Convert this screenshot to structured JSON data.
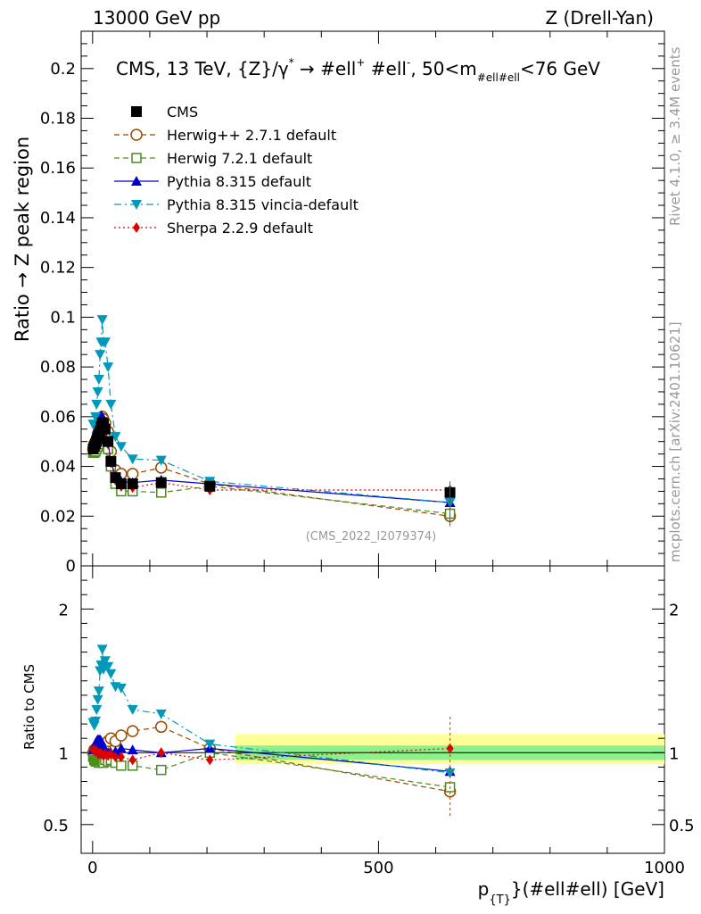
{
  "header": {
    "left": "13000 GeV pp",
    "right": "Z (Drell-Yan)"
  },
  "side_labels": {
    "rivet": "Rivet 4.1.0, ≥ 3.4M events",
    "mcplots": "mcplots.cern.ch [arXiv:2401.10621]"
  },
  "chart_data": {
    "type": "line",
    "title_parts": {
      "main": "CMS, 13 TeV, {Z}/γ",
      "star": "*",
      "arrow": " → ",
      "l1": " #ell",
      "l1sup": "+",
      "l2": " #ell",
      "l2sup": "-",
      "comma": ",  50<m",
      "msub": "#ell#ell",
      "tail": "<76 GeV"
    },
    "ylabel": "Ratio → Z peak region",
    "ratio_ylabel": "Ratio to CMS",
    "xlabel_parts": {
      "p": "p",
      "sub": "{T}",
      "rest": "}(#ell#ell) [GeV]"
    },
    "watermark": "(CMS_2022_I2079374)",
    "xlim": [
      -20,
      1000
    ],
    "ylim": [
      0,
      0.215
    ],
    "ratio_ylim": [
      0.3,
      2.3
    ],
    "xticks": [
      0,
      500,
      1000
    ],
    "yticks": [
      0,
      0.02,
      0.04,
      0.06,
      0.08,
      0.1,
      0.12,
      0.14,
      0.16,
      0.18,
      0.2
    ],
    "ytick_labels": [
      "0",
      "0.02",
      "0.04",
      "0.06",
      "0.08",
      "0.1",
      "0.12",
      "0.14",
      "0.16",
      "0.18",
      "0.2"
    ],
    "ratio_yticks": [
      0.5,
      1,
      2
    ],
    "ratio_ytick_labels": [
      "0.5",
      "1",
      "2"
    ],
    "x": [
      1,
      3,
      5,
      7,
      9,
      11,
      13,
      15,
      17,
      19,
      22,
      27,
      32,
      40,
      50,
      70,
      120,
      205,
      625
    ],
    "series": [
      {
        "name": "CMS",
        "color": "#000000",
        "marker": "square-filled",
        "line": "none",
        "values": [
          0.047,
          0.048,
          0.049,
          0.05,
          0.051,
          0.0525,
          0.054,
          0.056,
          0.0575,
          0.057,
          0.055,
          0.05,
          0.042,
          0.0355,
          0.033,
          0.033,
          0.0335,
          0.032,
          0.0295
        ]
      },
      {
        "name": "Herwig++ 2.7.1 default",
        "color": "#9a4a00",
        "marker": "circle-open",
        "line": "dashed",
        "values": [
          0.047,
          0.049,
          0.05,
          0.051,
          0.053,
          0.0545,
          0.056,
          0.058,
          0.06,
          0.059,
          0.0575,
          0.054,
          0.046,
          0.0385,
          0.037,
          0.037,
          0.0395,
          0.033,
          0.02
        ]
      },
      {
        "name": "Herwig 7.2.1 default",
        "color": "#4a8c1a",
        "marker": "square-open",
        "line": "dashed",
        "values": [
          0.0455,
          0.0455,
          0.046,
          0.047,
          0.048,
          0.049,
          0.051,
          0.053,
          0.054,
          0.053,
          0.052,
          0.047,
          0.04,
          0.033,
          0.03,
          0.03,
          0.0295,
          0.032,
          0.021
        ]
      },
      {
        "name": "Pythia 8.315 default",
        "color": "#0000cc",
        "marker": "triangle-up",
        "line": "solid",
        "values": [
          0.048,
          0.05,
          0.052,
          0.054,
          0.0555,
          0.057,
          0.059,
          0.0605,
          0.06,
          0.058,
          0.056,
          0.05,
          0.042,
          0.036,
          0.034,
          0.0335,
          0.0345,
          0.033,
          0.0255
        ]
      },
      {
        "name": "Pythia 8.315 vincia-default",
        "color": "#0099bb",
        "marker": "triangle-down",
        "line": "dashdot",
        "values": [
          0.057,
          0.057,
          0.06,
          0.065,
          0.07,
          0.075,
          0.085,
          0.09,
          0.099,
          0.09,
          0.09,
          0.08,
          0.065,
          0.052,
          0.048,
          0.043,
          0.0425,
          0.034,
          0.0255
        ]
      },
      {
        "name": "Sherpa 2.2.9 default",
        "color": "#dd0000",
        "marker": "diamond",
        "line": "dotted",
        "values": [
          0.048,
          0.049,
          0.0495,
          0.0505,
          0.051,
          0.052,
          0.054,
          0.0555,
          0.057,
          0.056,
          0.0545,
          0.049,
          0.0415,
          0.0345,
          0.032,
          0.0315,
          0.0335,
          0.0305,
          0.0305
        ]
      }
    ],
    "ratio_band": {
      "x_range": [
        250,
        1000
      ],
      "inner": [
        0.95,
        1.05
      ],
      "outer": [
        0.92,
        1.13
      ],
      "inner_color": "#8df08d",
      "outer_color": "#ffff99"
    },
    "ratio_series": [
      {
        "name": "Herwig++ 2.7.1 default",
        "values": [
          1.0,
          1.02,
          1.02,
          1.02,
          1.04,
          1.04,
          1.04,
          1.04,
          1.04,
          1.04,
          1.05,
          1.08,
          1.1,
          1.08,
          1.12,
          1.15,
          1.18,
          1.03,
          0.73
        ]
      },
      {
        "name": "Herwig 7.2.1 default",
        "values": [
          0.97,
          0.95,
          0.94,
          0.94,
          0.94,
          0.93,
          0.94,
          0.95,
          0.94,
          0.93,
          0.95,
          0.94,
          0.95,
          0.93,
          0.91,
          0.91,
          0.88,
          1.0,
          0.76
        ]
      },
      {
        "name": "Pythia 8.315 default",
        "values": [
          1.02,
          1.04,
          1.06,
          1.08,
          1.09,
          1.09,
          1.09,
          1.08,
          1.04,
          1.02,
          1.02,
          1.0,
          1.0,
          1.01,
          1.03,
          1.02,
          1.0,
          1.03,
          0.87
        ]
      },
      {
        "name": "Pythia 8.315 vincia-default",
        "values": [
          1.21,
          1.19,
          1.22,
          1.3,
          1.37,
          1.43,
          1.57,
          1.61,
          1.72,
          1.58,
          1.64,
          1.6,
          1.55,
          1.46,
          1.45,
          1.3,
          1.27,
          1.06,
          0.86
        ]
      },
      {
        "name": "Sherpa 2.2.9 default",
        "values": [
          1.02,
          1.02,
          1.01,
          1.01,
          1.0,
          0.99,
          1.0,
          0.99,
          0.99,
          0.98,
          0.99,
          0.98,
          0.99,
          0.97,
          0.97,
          0.95,
          1.0,
          0.95,
          1.03
        ]
      }
    ]
  }
}
